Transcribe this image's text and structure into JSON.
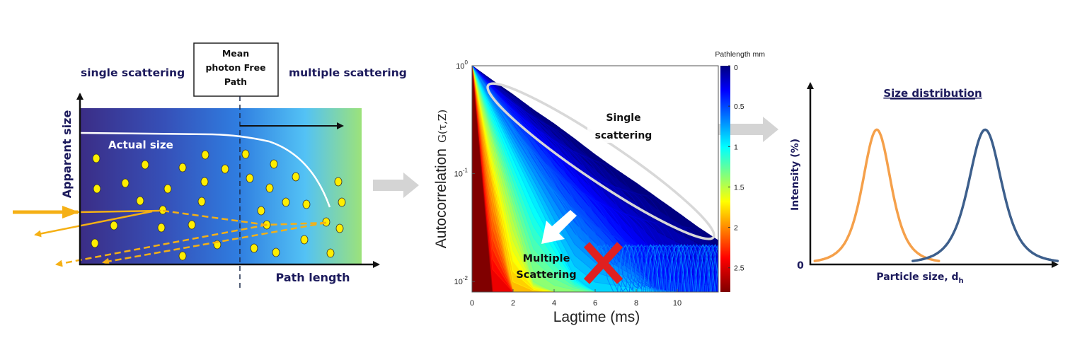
{
  "left_panel": {
    "single_label": "single scattering",
    "multiple_label": "multiple scattering",
    "box_lines": [
      "Mean",
      "photon Free",
      "Path"
    ],
    "y_axis_label": "Apparent size",
    "x_axis_label": "Path length",
    "curve_label": "Actual size",
    "colors": {
      "particle": "#ffee00",
      "beam": "#f5b015",
      "text": "#1c1a5c"
    }
  },
  "chart_data": [
    {
      "type": "line",
      "title": "",
      "xlabel": "Lagtime (ms)",
      "ylabel": "Autocorrelation",
      "ylabel_symbol": "G(τ,Z)",
      "x_scale": "linear",
      "y_scale": "log",
      "xlim": [
        0,
        12
      ],
      "ylim": [
        0.008,
        1
      ],
      "x_ticks": [
        "0",
        "2",
        "4",
        "6",
        "8",
        "10"
      ],
      "y_ticks": [
        {
          "base": "10",
          "exp": "0"
        },
        {
          "base": "10",
          "exp": "-1"
        },
        {
          "base": "10",
          "exp": "-2"
        }
      ],
      "x": [
        0,
        1,
        2,
        3,
        4,
        5,
        6,
        7,
        8,
        9,
        10,
        11,
        12
      ],
      "series": [
        {
          "pathlength": 0,
          "values": [
            1,
            0.73,
            0.54,
            0.39,
            0.29,
            0.21,
            0.15,
            0.11,
            0.082,
            0.06,
            0.044,
            0.032,
            0.024
          ]
        },
        {
          "pathlength": 0.5,
          "values": [
            1,
            0.59,
            0.35,
            0.21,
            0.12,
            0.072,
            0.043,
            0.025,
            0.015,
            0.0088,
            0.008,
            0.008,
            0.008
          ]
        },
        {
          "pathlength": 1,
          "values": [
            1,
            0.4,
            0.16,
            0.065,
            0.026,
            0.011,
            0.008,
            0.008,
            0.008,
            0.008,
            0.008,
            0.008,
            0.008
          ]
        },
        {
          "pathlength": 1.5,
          "values": [
            1,
            0.21,
            0.046,
            0.01,
            0.008,
            0.008,
            0.008,
            0.008,
            0.008,
            0.008,
            0.008,
            0.008,
            0.008
          ]
        },
        {
          "pathlength": 2,
          "values": [
            1,
            0.077,
            0.008,
            0.008,
            0.008,
            0.008,
            0.008,
            0.008,
            0.008,
            0.008,
            0.008,
            0.008,
            0.008
          ]
        },
        {
          "pathlength": 2.5,
          "values": [
            1,
            0.013,
            0.008,
            0.008,
            0.008,
            0.008,
            0.008,
            0.008,
            0.008,
            0.008,
            0.008,
            0.008,
            0.008
          ]
        }
      ],
      "colorbar": {
        "label": "Pathlength mm",
        "ticks": [
          "0",
          "0.5",
          "1",
          "1.5",
          "2",
          "2.5"
        ],
        "range": [
          0,
          2.8
        ],
        "colormap": "jet-reversed"
      },
      "annotations": {
        "single": [
          "Single",
          "scattering"
        ],
        "multiple": [
          "Multiple",
          "Scattering"
        ]
      },
      "colors": {
        "ellipse": "#d8d8d8",
        "cross": "#e02020"
      }
    },
    {
      "type": "line",
      "title": "Size distribution",
      "xlabel": "Particle size,  d",
      "xlabel_sub": "h",
      "ylabel": "Intensity (%)",
      "y_ticks": [
        "0"
      ],
      "xlim": [
        0,
        100
      ],
      "ylim": [
        0,
        1.35
      ],
      "series": [
        {
          "peak_x": 27,
          "peak_y": 1,
          "width": 6,
          "color": "#f5a04a"
        },
        {
          "peak_x": 71,
          "peak_y": 1,
          "width": 7,
          "color": "#3d5f8c"
        }
      ]
    }
  ]
}
